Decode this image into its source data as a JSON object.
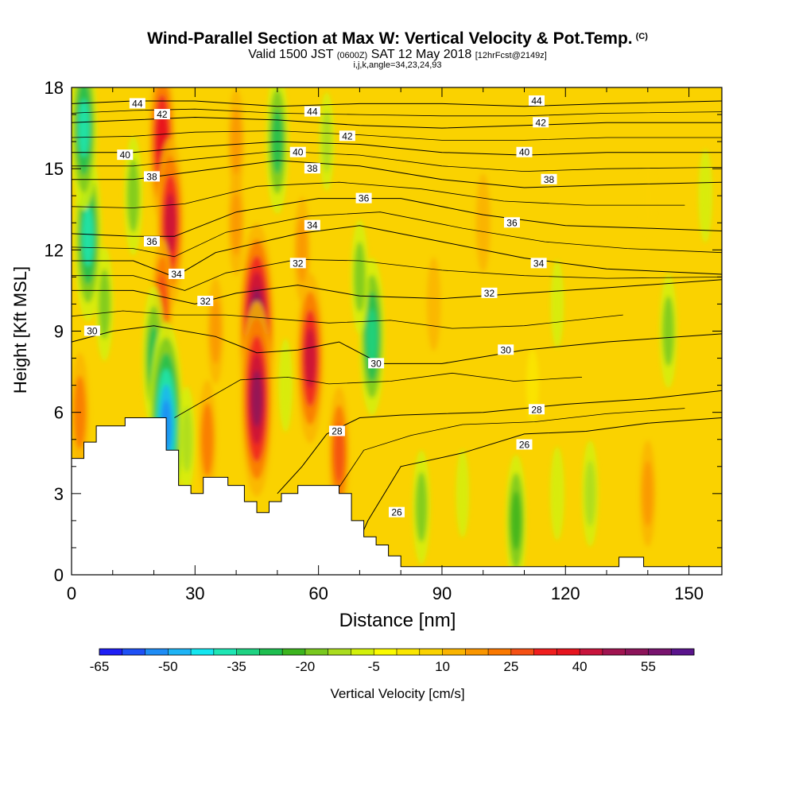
{
  "header": {
    "title": "Wind-Parallel Section at Max W: Vertical Velocity & Pot.Temp.",
    "title_mark": "(C)",
    "valid_prefix": "Valid 1500 JST",
    "valid_utc": "(0600Z)",
    "valid_date": "SAT 12 May 2018",
    "fcst": "[12hrFcst@2149z]",
    "indices": "i,j,k,angle=34,23,24,93"
  },
  "chart_data": {
    "type": "heatmap",
    "title": "Wind-Parallel Section at Max W: Vertical Velocity & Pot.Temp.",
    "xlabel": "Distance [nm]",
    "ylabel": "Height [Kft MSL]",
    "xlim": [
      0,
      158
    ],
    "ylim": [
      0,
      18
    ],
    "x_ticks": [
      0,
      30,
      60,
      90,
      120,
      150
    ],
    "x_tick_labels": [
      "0",
      "30",
      "60",
      "90",
      "120",
      "150"
    ],
    "y_ticks": [
      0,
      3,
      6,
      9,
      12,
      15,
      18
    ],
    "y_tick_labels": [
      "0",
      "3",
      "6",
      "9",
      "12",
      "15",
      "18"
    ],
    "colorbar": {
      "label": "Vertical Velocity [cm/s]",
      "tick_values": [
        -65,
        -50,
        -35,
        -20,
        -5,
        10,
        25,
        40,
        55
      ],
      "tick_labels": [
        "-65",
        "-50",
        "-35",
        "-20",
        "-5",
        "10",
        "25",
        "40",
        "55"
      ],
      "colors": [
        "#1e1ef5",
        "#1e50f5",
        "#1e8cf5",
        "#1eb4f5",
        "#14e6f0",
        "#1ee6b4",
        "#1ed282",
        "#1ebe50",
        "#3cb41e",
        "#78c81e",
        "#aadc1e",
        "#d2f00a",
        "#fafa00",
        "#fae600",
        "#fad200",
        "#fab400",
        "#fa9600",
        "#fa7800",
        "#f55014",
        "#f01e1e",
        "#e6141e",
        "#c8143c",
        "#a01450",
        "#8c145a",
        "#78146e",
        "#5a148c"
      ]
    },
    "velocity_field_cm_s": [
      {
        "x": 4,
        "y": 12.5,
        "w": -40
      },
      {
        "x": 3,
        "y": 16.5,
        "w": -38
      },
      {
        "x": 8,
        "y": 10,
        "w": -18
      },
      {
        "x": 15,
        "y": 14,
        "w": -20
      },
      {
        "x": 22,
        "y": 16,
        "w": 38
      },
      {
        "x": 24,
        "y": 13,
        "w": 40
      },
      {
        "x": 22,
        "y": 10,
        "w": 25
      },
      {
        "x": 20,
        "y": 8,
        "w": -30
      },
      {
        "x": 23,
        "y": 5.5,
        "w": -55
      },
      {
        "x": 28,
        "y": 5,
        "w": -15
      },
      {
        "x": 33,
        "y": 5,
        "w": 20
      },
      {
        "x": 45,
        "y": 9,
        "w": 58
      },
      {
        "x": 45,
        "y": 6.5,
        "w": 50
      },
      {
        "x": 52,
        "y": 7,
        "w": -10
      },
      {
        "x": 58,
        "y": 8,
        "w": 40
      },
      {
        "x": 56,
        "y": 12,
        "w": 15
      },
      {
        "x": 65,
        "y": 4.5,
        "w": 25
      },
      {
        "x": 73,
        "y": 8.8,
        "w": -35
      },
      {
        "x": 70,
        "y": 11,
        "w": -18
      },
      {
        "x": 62,
        "y": 16,
        "w": -12
      },
      {
        "x": 50,
        "y": 16,
        "w": -30
      },
      {
        "x": 40,
        "y": 13,
        "w": 15
      },
      {
        "x": 40,
        "y": 16,
        "w": 15
      },
      {
        "x": 85,
        "y": 2.5,
        "w": -18
      },
      {
        "x": 95,
        "y": 3,
        "w": -8
      },
      {
        "x": 108,
        "y": 2,
        "w": -25
      },
      {
        "x": 118,
        "y": 3,
        "w": -10
      },
      {
        "x": 126,
        "y": 3,
        "w": -15
      },
      {
        "x": 140,
        "y": 3,
        "w": 15
      },
      {
        "x": 145,
        "y": 9,
        "w": -18
      },
      {
        "x": 118,
        "y": 10,
        "w": -8
      },
      {
        "x": 100,
        "y": 13,
        "w": 12
      },
      {
        "x": 140,
        "y": 14,
        "w": 5
      },
      {
        "x": 154,
        "y": 14,
        "w": -10
      },
      {
        "x": 2,
        "y": 6,
        "w": 20
      },
      {
        "x": 88,
        "y": 10,
        "w": 10
      },
      {
        "x": 112,
        "y": 7,
        "w": 2
      },
      {
        "x": 80,
        "y": 15,
        "w": 5
      },
      {
        "x": 35,
        "y": 9,
        "w": 15
      }
    ],
    "theta_contours": [
      {
        "label": "26",
        "points": [
          [
            67,
            0.3
          ],
          [
            72,
            2.0
          ],
          [
            80,
            4.0
          ],
          [
            95,
            4.5
          ],
          [
            110,
            5.2
          ],
          [
            125,
            5.3
          ],
          [
            140,
            5.6
          ],
          [
            158,
            5.8
          ]
        ]
      },
      {
        "label": "28",
        "points": [
          [
            50,
            3.0
          ],
          [
            56,
            4.0
          ],
          [
            62,
            5.2
          ],
          [
            70,
            5.8
          ],
          [
            80,
            5.9
          ],
          [
            100,
            6.0
          ],
          [
            120,
            6.3
          ],
          [
            140,
            6.5
          ],
          [
            158,
            6.8
          ]
        ]
      },
      {
        "label": "30",
        "points": [
          [
            0,
            8.6
          ],
          [
            10,
            9.0
          ],
          [
            20,
            9.2
          ],
          [
            35,
            8.8
          ],
          [
            45,
            8.2
          ],
          [
            55,
            8.3
          ],
          [
            65,
            8.6
          ],
          [
            75,
            7.8
          ],
          [
            90,
            7.8
          ],
          [
            110,
            8.3
          ],
          [
            130,
            8.6
          ],
          [
            158,
            8.9
          ]
        ]
      },
      {
        "label": "32",
        "points": [
          [
            0,
            10.5
          ],
          [
            15,
            10.5
          ],
          [
            30,
            10.0
          ],
          [
            40,
            10.4
          ],
          [
            55,
            10.7
          ],
          [
            70,
            10.3
          ],
          [
            90,
            10.2
          ],
          [
            110,
            10.4
          ],
          [
            130,
            10.6
          ],
          [
            158,
            10.9
          ]
        ]
      },
      {
        "label": "34",
        "points": [
          [
            0,
            11.6
          ],
          [
            15,
            11.6
          ],
          [
            25,
            11.0
          ],
          [
            35,
            11.9
          ],
          [
            55,
            12.6
          ],
          [
            70,
            12.9
          ],
          [
            90,
            12.3
          ],
          [
            110,
            11.7
          ],
          [
            130,
            11.3
          ],
          [
            158,
            11.1
          ]
        ]
      },
      {
        "label": "36",
        "points": [
          [
            0,
            12.6
          ],
          [
            15,
            12.5
          ],
          [
            25,
            12.5
          ],
          [
            40,
            13.4
          ],
          [
            60,
            13.9
          ],
          [
            80,
            13.9
          ],
          [
            100,
            13.3
          ],
          [
            120,
            12.9
          ],
          [
            140,
            12.8
          ],
          [
            158,
            12.7
          ]
        ]
      },
      {
        "label": "38",
        "points": [
          [
            0,
            14.6
          ],
          [
            15,
            14.6
          ],
          [
            30,
            14.9
          ],
          [
            50,
            15.3
          ],
          [
            70,
            15.1
          ],
          [
            90,
            14.6
          ],
          [
            110,
            14.3
          ],
          [
            130,
            14.4
          ],
          [
            158,
            14.5
          ]
        ]
      },
      {
        "label": "40",
        "points": [
          [
            0,
            15.6
          ],
          [
            15,
            15.6
          ],
          [
            30,
            15.8
          ],
          [
            50,
            16.0
          ],
          [
            70,
            15.9
          ],
          [
            90,
            15.6
          ],
          [
            110,
            15.5
          ],
          [
            130,
            15.6
          ],
          [
            158,
            15.6
          ]
        ]
      },
      {
        "label": "42",
        "points": [
          [
            0,
            16.7
          ],
          [
            15,
            16.8
          ],
          [
            30,
            16.9
          ],
          [
            50,
            16.8
          ],
          [
            70,
            16.6
          ],
          [
            90,
            16.5
          ],
          [
            110,
            16.6
          ],
          [
            130,
            16.7
          ],
          [
            158,
            16.7
          ]
        ]
      },
      {
        "label": "44",
        "points": [
          [
            0,
            17.4
          ],
          [
            15,
            17.5
          ],
          [
            30,
            17.5
          ],
          [
            50,
            17.3
          ],
          [
            70,
            17.4
          ],
          [
            90,
            17.4
          ],
          [
            110,
            17.3
          ],
          [
            130,
            17.4
          ],
          [
            158,
            17.5
          ]
        ]
      }
    ],
    "contour_labels": [
      {
        "text": "44",
        "x": 16,
        "y": 17.4
      },
      {
        "text": "42",
        "x": 22,
        "y": 17.0
      },
      {
        "text": "40",
        "x": 13,
        "y": 15.5
      },
      {
        "text": "38",
        "x": 19.5,
        "y": 14.7
      },
      {
        "text": "36",
        "x": 19.5,
        "y": 12.3
      },
      {
        "text": "34",
        "x": 25.5,
        "y": 11.1
      },
      {
        "text": "32",
        "x": 32.5,
        "y": 10.1
      },
      {
        "text": "30",
        "x": 5,
        "y": 9.0
      },
      {
        "text": "44",
        "x": 58.5,
        "y": 17.1
      },
      {
        "text": "42",
        "x": 67,
        "y": 16.2
      },
      {
        "text": "40",
        "x": 55,
        "y": 15.6
      },
      {
        "text": "38",
        "x": 58.5,
        "y": 15.0
      },
      {
        "text": "36",
        "x": 71,
        "y": 13.9
      },
      {
        "text": "34",
        "x": 58.5,
        "y": 12.9
      },
      {
        "text": "32",
        "x": 55,
        "y": 11.5
      },
      {
        "text": "30",
        "x": 74,
        "y": 7.8
      },
      {
        "text": "28",
        "x": 64.5,
        "y": 5.3
      },
      {
        "text": "26",
        "x": 79,
        "y": 2.3
      },
      {
        "text": "44",
        "x": 113,
        "y": 17.5
      },
      {
        "text": "42",
        "x": 114,
        "y": 16.7
      },
      {
        "text": "40",
        "x": 110,
        "y": 15.6
      },
      {
        "text": "38",
        "x": 116,
        "y": 14.6
      },
      {
        "text": "36",
        "x": 107,
        "y": 13.0
      },
      {
        "text": "34",
        "x": 113.5,
        "y": 11.5
      },
      {
        "text": "32",
        "x": 101.5,
        "y": 10.4
      },
      {
        "text": "30",
        "x": 105.5,
        "y": 8.3
      },
      {
        "text": "28",
        "x": 113,
        "y": 6.1
      },
      {
        "text": "26",
        "x": 110,
        "y": 4.8
      }
    ],
    "terrain_kft": [
      [
        0,
        4.3
      ],
      [
        3,
        4.3
      ],
      [
        3,
        4.9
      ],
      [
        6,
        4.9
      ],
      [
        6,
        5.5
      ],
      [
        13,
        5.5
      ],
      [
        13,
        5.8
      ],
      [
        23,
        5.8
      ],
      [
        23,
        4.6
      ],
      [
        26,
        4.6
      ],
      [
        26,
        3.3
      ],
      [
        29,
        3.3
      ],
      [
        29,
        3.0
      ],
      [
        32,
        3.0
      ],
      [
        32,
        3.6
      ],
      [
        38,
        3.6
      ],
      [
        38,
        3.3
      ],
      [
        42,
        3.3
      ],
      [
        42,
        2.7
      ],
      [
        45,
        2.7
      ],
      [
        45,
        2.3
      ],
      [
        48,
        2.3
      ],
      [
        48,
        2.7
      ],
      [
        51,
        2.7
      ],
      [
        51,
        3.0
      ],
      [
        55,
        3.0
      ],
      [
        55,
        3.3
      ],
      [
        65,
        3.3
      ],
      [
        65,
        3.0
      ],
      [
        68,
        3.0
      ],
      [
        68,
        2.0
      ],
      [
        71,
        2.0
      ],
      [
        71,
        1.4
      ],
      [
        74,
        1.4
      ],
      [
        74,
        1.1
      ],
      [
        77,
        1.1
      ],
      [
        77,
        0.7
      ],
      [
        80,
        0.7
      ],
      [
        80,
        0.3
      ],
      [
        133,
        0.3
      ],
      [
        133,
        0.65
      ],
      [
        139,
        0.65
      ],
      [
        139,
        0.3
      ],
      [
        158,
        0.3
      ]
    ]
  }
}
